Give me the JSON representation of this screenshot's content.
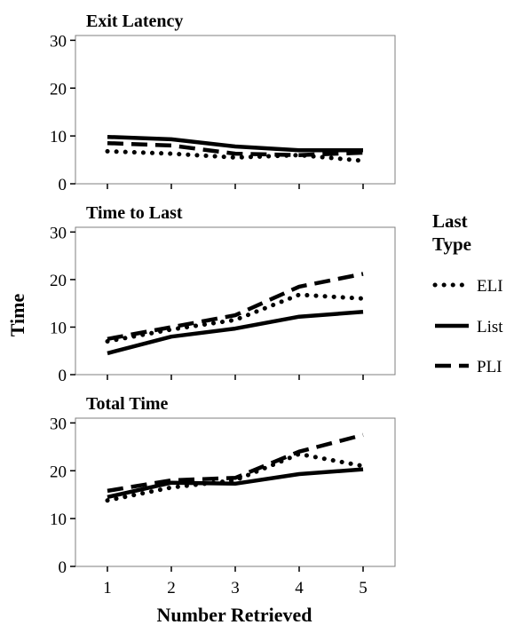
{
  "chart_data": {
    "type": "line",
    "ylabel": "Time",
    "xlabel": "Number Retrieved",
    "x": [
      1,
      2,
      3,
      4,
      5
    ],
    "x_ticks": [
      "1",
      "2",
      "3",
      "4",
      "5"
    ],
    "y_ticks": [
      "0",
      "10",
      "20",
      "30"
    ],
    "xlim": [
      0.5,
      5.5
    ],
    "ylim": [
      0,
      31
    ],
    "grid": false,
    "legend": {
      "title": "Last\nType",
      "placement": "right",
      "entries": [
        {
          "label": "ELI",
          "style": "dotted"
        },
        {
          "label": "List",
          "style": "solid"
        },
        {
          "label": "PLI",
          "style": "dashed"
        }
      ]
    },
    "panels": [
      {
        "title": "Exit Latency",
        "series": [
          {
            "name": "ELI",
            "values": [
              6.8,
              6.3,
              5.5,
              6.0,
              4.8
            ]
          },
          {
            "name": "List",
            "values": [
              9.8,
              9.3,
              7.8,
              7.0,
              7.0
            ]
          },
          {
            "name": "PLI",
            "values": [
              8.5,
              8.0,
              6.3,
              6.0,
              6.5
            ]
          }
        ]
      },
      {
        "title": "Time to Last",
        "series": [
          {
            "name": "ELI",
            "values": [
              7.0,
              9.5,
              11.5,
              16.8,
              16.0
            ]
          },
          {
            "name": "List",
            "values": [
              4.5,
              8.0,
              9.7,
              12.2,
              13.2
            ]
          },
          {
            "name": "PLI",
            "values": [
              7.5,
              10.0,
              12.5,
              18.5,
              21.2
            ]
          }
        ]
      },
      {
        "title": "Total Time",
        "series": [
          {
            "name": "ELI",
            "values": [
              13.8,
              16.5,
              18.0,
              23.5,
              21.0
            ]
          },
          {
            "name": "List",
            "values": [
              14.5,
              17.5,
              17.3,
              19.3,
              20.3
            ]
          },
          {
            "name": "PLI",
            "values": [
              15.8,
              18.0,
              18.5,
              24.0,
              27.5
            ]
          }
        ]
      }
    ],
    "colors": {
      "lines": "#000000",
      "frame": "#7f7f7f"
    }
  }
}
